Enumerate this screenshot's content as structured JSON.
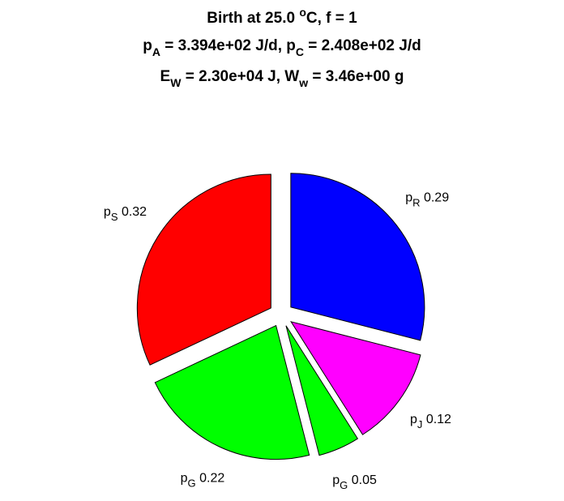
{
  "chart_data": {
    "type": "pie",
    "title": [
      [
        {
          "text": "Birth at 25.0 "
        },
        {
          "sup": "o"
        },
        {
          "text": "C, f = 1"
        }
      ],
      [
        {
          "text": "p"
        },
        {
          "sub": "A"
        },
        {
          "text": " = 3.394e+02 J/d, p"
        },
        {
          "sub": "C"
        },
        {
          "text": " = 2.408e+02 J/d"
        }
      ],
      [
        {
          "text": "E"
        },
        {
          "sub": "W"
        },
        {
          "text": " = 2.30e+04 J, W"
        },
        {
          "sub": "w"
        },
        {
          "text": " = 3.46e+00 g"
        }
      ]
    ],
    "categories": [
      {
        "base": "p",
        "sub": "R"
      },
      {
        "base": "p",
        "sub": "J"
      },
      {
        "base": "p",
        "sub": "G"
      },
      {
        "base": "p",
        "sub": "G"
      },
      {
        "base": "p",
        "sub": "S"
      }
    ],
    "values": [
      0.29,
      0.12,
      0.05,
      0.22,
      0.32
    ],
    "colors": [
      "#0000ff",
      "#ff00ff",
      "#00ff00",
      "#00ff00",
      "#ff0000"
    ],
    "explode": true
  }
}
